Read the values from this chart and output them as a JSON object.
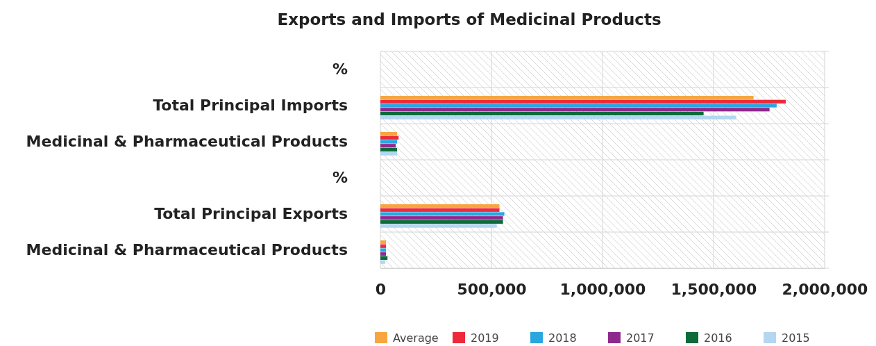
{
  "chart_data": {
    "type": "bar",
    "orientation": "horizontal",
    "title": "Exports and Imports of Medicinal Products",
    "categories": [
      "%",
      "Total Principal Imports",
      "Medicinal & Pharmaceutical Products",
      "%",
      "Total Principal Exports",
      "Medicinal & Pharmaceutical Products"
    ],
    "series": [
      {
        "name": "Average",
        "color": "#f7a541",
        "values": [
          null,
          1680000,
          75000,
          null,
          536000,
          25000
        ]
      },
      {
        "name": "2019",
        "color": "#ee2a3a",
        "values": [
          null,
          1825000,
          82000,
          null,
          536000,
          25000
        ]
      },
      {
        "name": "2018",
        "color": "#2aa7df",
        "values": [
          null,
          1784000,
          75000,
          null,
          558000,
          25000
        ]
      },
      {
        "name": "2017",
        "color": "#8e2a8e",
        "values": [
          null,
          1752000,
          69000,
          null,
          552000,
          25000
        ]
      },
      {
        "name": "2016",
        "color": "#0d6b3a",
        "values": [
          null,
          1455000,
          75000,
          null,
          552000,
          32000
        ]
      },
      {
        "name": "2015",
        "color": "#b3d7f0",
        "values": [
          null,
          1602000,
          75000,
          null,
          524000,
          22000
        ]
      }
    ],
    "xlim": [
      0,
      2000000
    ],
    "xticks": [
      {
        "value": 0,
        "label": "0"
      },
      {
        "value": 500000,
        "label": "500,000"
      },
      {
        "value": 1000000,
        "label": "1,000,000"
      },
      {
        "value": 1500000,
        "label": "1,500,000"
      },
      {
        "value": 2000000,
        "label": "2,000,000"
      }
    ],
    "grid": true,
    "legend": "bottom"
  }
}
